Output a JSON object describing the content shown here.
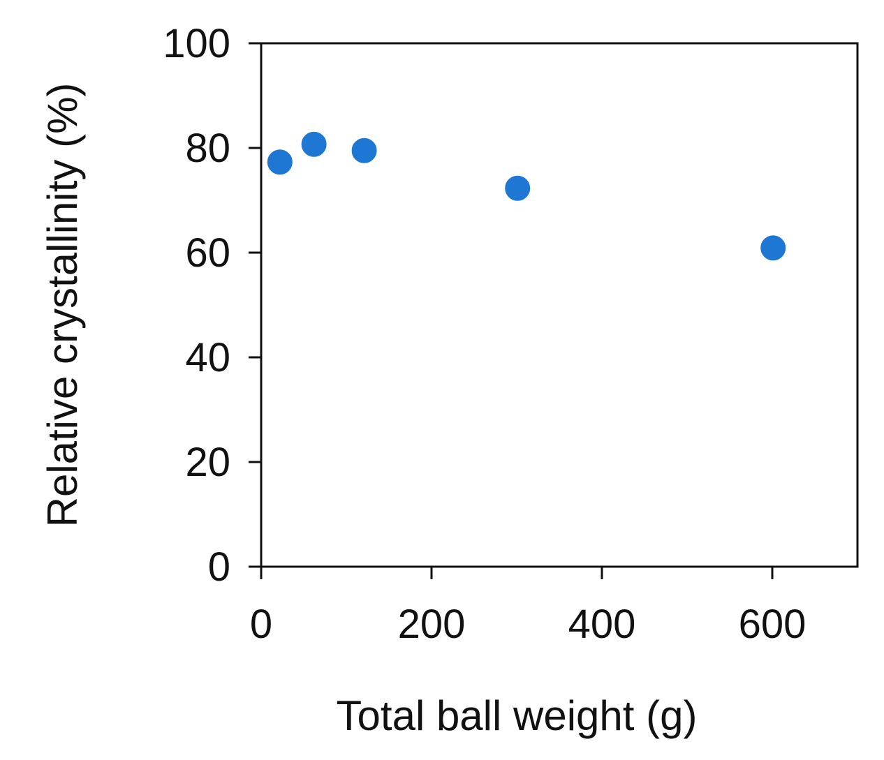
{
  "chart_data": {
    "type": "scatter",
    "xlabel": "Total ball weight (g)",
    "ylabel": "Relative crystallinity (%)",
    "xlim": [
      0,
      700
    ],
    "ylim": [
      0,
      100
    ],
    "x_ticks": [
      0,
      200,
      400,
      600
    ],
    "y_ticks": [
      0,
      20,
      40,
      60,
      80,
      100
    ],
    "grid": false,
    "series": [
      {
        "color": "#1f77d4",
        "points": [
          {
            "x": 22,
            "y": 77.3
          },
          {
            "x": 62,
            "y": 80.7
          },
          {
            "x": 121,
            "y": 79.5
          },
          {
            "x": 301,
            "y": 72.3
          },
          {
            "x": 601,
            "y": 60.9
          }
        ]
      }
    ]
  }
}
